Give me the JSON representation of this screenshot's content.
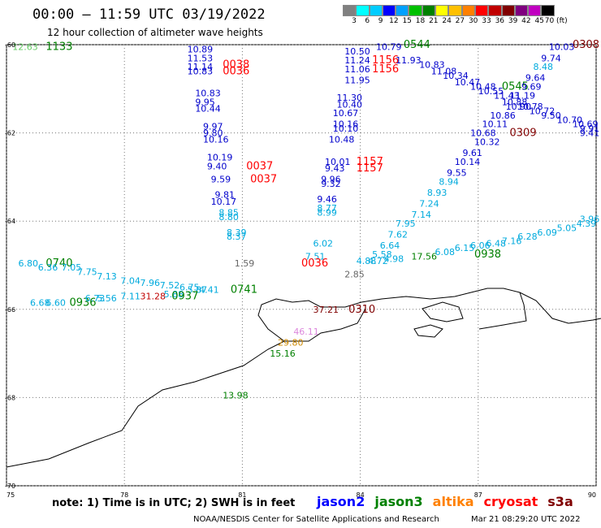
{
  "title": "00:00 – 11:59 UTC 03/19/2022",
  "subtitle": "12 hour collection of altimeter wave heights",
  "scale": {
    "labels": [
      "3",
      "6",
      "9",
      "12",
      "15",
      "18",
      "21",
      "24",
      "27",
      "30",
      "33",
      "36",
      "39",
      "42",
      "45",
      "70 (ft)"
    ],
    "colors": [
      "#808080",
      "#00ffff",
      "#00ccff",
      "#0000ff",
      "#00a0ff",
      "#00c000",
      "#008000",
      "#ffff00",
      "#ffc000",
      "#ff8000",
      "#ff0000",
      "#c00000",
      "#800000",
      "#800080",
      "#c000c0",
      "#000000"
    ]
  },
  "axes": {
    "lon": [
      75,
      78,
      81,
      84,
      87,
      90
    ],
    "lat": [
      -60,
      -62,
      -64,
      -66,
      -68,
      -70
    ]
  },
  "note": "note: 1) Time is in UTC; 2) SWH is in feet",
  "legend": [
    {
      "name": "jason2",
      "color": "#0000ff"
    },
    {
      "name": "jason3",
      "color": "#008000"
    },
    {
      "name": "altika",
      "color": "#ff8000"
    },
    {
      "name": "cryosat",
      "color": "#ff0000"
    },
    {
      "name": "s3a",
      "color": "#800000"
    }
  ],
  "credit": "NOAA/NESDIS Center for Satellite Applications and Research",
  "timestamp": "Mar 21 08:29:20 UTC 2022",
  "map_labels": [
    {
      "t": "12.63",
      "lon": 75.15,
      "lat": -60.05,
      "c": "#66cc66",
      "s": 11
    },
    {
      "t": "1133",
      "lon": 76.0,
      "lat": -60.05,
      "c": "#008000",
      "s": 13
    },
    {
      "t": "10.89",
      "lon": 79.6,
      "lat": -60.1,
      "c": "#0000cc",
      "s": 11
    },
    {
      "t": "11.53",
      "lon": 79.6,
      "lat": -60.3,
      "c": "#0000cc",
      "s": 11
    },
    {
      "t": "11.14",
      "lon": 79.6,
      "lat": -60.5,
      "c": "#0000cc",
      "s": 11
    },
    {
      "t": "10.83",
      "lon": 79.6,
      "lat": -60.6,
      "c": "#0000cc",
      "s": 11
    },
    {
      "t": "0038",
      "lon": 80.5,
      "lat": -60.45,
      "c": "#ff0000",
      "s": 13
    },
    {
      "t": "0036",
      "lon": 80.5,
      "lat": -60.6,
      "c": "#ff0000",
      "s": 13
    },
    {
      "t": "10.83",
      "lon": 79.8,
      "lat": -61.1,
      "c": "#0000cc",
      "s": 11
    },
    {
      "t": "9.95",
      "lon": 79.8,
      "lat": -61.3,
      "c": "#0000cc",
      "s": 11
    },
    {
      "t": "10.44",
      "lon": 79.8,
      "lat": -61.45,
      "c": "#0000cc",
      "s": 11
    },
    {
      "t": "9.97",
      "lon": 80.0,
      "lat": -61.85,
      "c": "#0000cc",
      "s": 11
    },
    {
      "t": "9.80",
      "lon": 80.0,
      "lat": -62.0,
      "c": "#0000cc",
      "s": 11
    },
    {
      "t": "10.16",
      "lon": 80.0,
      "lat": -62.15,
      "c": "#0000cc",
      "s": 11
    },
    {
      "t": "10.19",
      "lon": 80.1,
      "lat": -62.55,
      "c": "#0000cc",
      "s": 11
    },
    {
      "t": "9.40",
      "lon": 80.1,
      "lat": -62.75,
      "c": "#0000cc",
      "s": 11
    },
    {
      "t": "0037",
      "lon": 81.1,
      "lat": -62.75,
      "c": "#ff0000",
      "s": 13
    },
    {
      "t": "0037",
      "lon": 81.2,
      "lat": -63.05,
      "c": "#ff0000",
      "s": 13
    },
    {
      "t": "9.59",
      "lon": 80.2,
      "lat": -63.05,
      "c": "#0000cc",
      "s": 11
    },
    {
      "t": "9.81",
      "lon": 80.3,
      "lat": -63.4,
      "c": "#0000cc",
      "s": 11
    },
    {
      "t": "10.17",
      "lon": 80.2,
      "lat": -63.55,
      "c": "#0000cc",
      "s": 11
    },
    {
      "t": "8.85",
      "lon": 80.4,
      "lat": -63.8,
      "c": "#00aadd",
      "s": 11
    },
    {
      "t": "8.80",
      "lon": 80.4,
      "lat": -63.9,
      "c": "#00aadd",
      "s": 11
    },
    {
      "t": "8.39",
      "lon": 80.6,
      "lat": -64.25,
      "c": "#00aadd",
      "s": 11
    },
    {
      "t": "8.37",
      "lon": 80.6,
      "lat": -64.35,
      "c": "#00aadd",
      "s": 11
    },
    {
      "t": "1.59",
      "lon": 80.8,
      "lat": -64.95,
      "c": "#666666",
      "s": 11
    },
    {
      "t": "6.02",
      "lon": 82.8,
      "lat": -64.5,
      "c": "#00aadd",
      "s": 11
    },
    {
      "t": "7.51",
      "lon": 82.6,
      "lat": -64.8,
      "c": "#00aadd",
      "s": 11
    },
    {
      "t": "0036",
      "lon": 82.5,
      "lat": -64.95,
      "c": "#ff0000",
      "s": 13
    },
    {
      "t": "10.01",
      "lon": 83.1,
      "lat": -62.65,
      "c": "#0000cc",
      "s": 11
    },
    {
      "t": "9.43",
      "lon": 83.1,
      "lat": -62.8,
      "c": "#0000cc",
      "s": 11
    },
    {
      "t": "9.96",
      "lon": 83.0,
      "lat": -63.05,
      "c": "#0000cc",
      "s": 11
    },
    {
      "t": "9.32",
      "lon": 83.0,
      "lat": -63.15,
      "c": "#0000cc",
      "s": 11
    },
    {
      "t": "9.46",
      "lon": 82.9,
      "lat": -63.5,
      "c": "#0000cc",
      "s": 11
    },
    {
      "t": "8.77",
      "lon": 82.9,
      "lat": -63.7,
      "c": "#00aadd",
      "s": 11
    },
    {
      "t": "8.99",
      "lon": 82.9,
      "lat": -63.8,
      "c": "#00aadd",
      "s": 11
    },
    {
      "t": "1157",
      "lon": 83.9,
      "lat": -62.65,
      "c": "#ff0000",
      "s": 13
    },
    {
      "t": "1157",
      "lon": 83.9,
      "lat": -62.8,
      "c": "#ff0000",
      "s": 13
    },
    {
      "t": "11.30",
      "lon": 83.4,
      "lat": -61.2,
      "c": "#0000cc",
      "s": 11
    },
    {
      "t": "10.40",
      "lon": 83.4,
      "lat": -61.35,
      "c": "#0000cc",
      "s": 11
    },
    {
      "t": "10.67",
      "lon": 83.3,
      "lat": -61.55,
      "c": "#0000cc",
      "s": 11
    },
    {
      "t": "10.16",
      "lon": 83.3,
      "lat": -61.8,
      "c": "#0000cc",
      "s": 11
    },
    {
      "t": "10.10",
      "lon": 83.3,
      "lat": -61.9,
      "c": "#0000cc",
      "s": 11
    },
    {
      "t": "10.48",
      "lon": 83.2,
      "lat": -62.15,
      "c": "#0000cc",
      "s": 11
    },
    {
      "t": "10.50",
      "lon": 83.6,
      "lat": -60.15,
      "c": "#0000cc",
      "s": 11
    },
    {
      "t": "11.24",
      "lon": 83.6,
      "lat": -60.35,
      "c": "#0000cc",
      "s": 11
    },
    {
      "t": "11.06",
      "lon": 83.6,
      "lat": -60.55,
      "c": "#0000cc",
      "s": 11
    },
    {
      "t": "11.95",
      "lon": 83.6,
      "lat": -60.8,
      "c": "#0000cc",
      "s": 11
    },
    {
      "t": "10.79",
      "lon": 84.4,
      "lat": -60.05,
      "c": "#0000cc",
      "s": 11
    },
    {
      "t": "0544",
      "lon": 85.1,
      "lat": -60.0,
      "c": "#008000",
      "s": 13
    },
    {
      "t": "1156",
      "lon": 84.3,
      "lat": -60.35,
      "c": "#ff0000",
      "s": 13
    },
    {
      "t": "1156",
      "lon": 84.3,
      "lat": -60.55,
      "c": "#ff0000",
      "s": 13
    },
    {
      "t": "11.93",
      "lon": 84.9,
      "lat": -60.35,
      "c": "#0000cc",
      "s": 11
    },
    {
      "t": "10.83",
      "lon": 85.5,
      "lat": -60.45,
      "c": "#0000cc",
      "s": 11
    },
    {
      "t": "11.08",
      "lon": 85.8,
      "lat": -60.6,
      "c": "#0000cc",
      "s": 11
    },
    {
      "t": "10.34",
      "lon": 86.1,
      "lat": -60.7,
      "c": "#0000cc",
      "s": 11
    },
    {
      "t": "10.47",
      "lon": 86.4,
      "lat": -60.85,
      "c": "#0000cc",
      "s": 11
    },
    {
      "t": "10.48",
      "lon": 86.8,
      "lat": -60.95,
      "c": "#0000cc",
      "s": 11
    },
    {
      "t": "10.55",
      "lon": 87.0,
      "lat": -61.05,
      "c": "#0000cc",
      "s": 11
    },
    {
      "t": "0545",
      "lon": 87.6,
      "lat": -60.95,
      "c": "#008000",
      "s": 13
    },
    {
      "t": "11.43",
      "lon": 87.4,
      "lat": -61.15,
      "c": "#0000cc",
      "s": 11
    },
    {
      "t": "11.19",
      "lon": 87.8,
      "lat": -61.15,
      "c": "#0000cc",
      "s": 11
    },
    {
      "t": "10.88",
      "lon": 87.6,
      "lat": -61.3,
      "c": "#0000cc",
      "s": 11
    },
    {
      "t": "10.90",
      "lon": 87.7,
      "lat": -61.4,
      "c": "#0000cc",
      "s": 11
    },
    {
      "t": "10.78",
      "lon": 88.0,
      "lat": -61.4,
      "c": "#0000cc",
      "s": 11
    },
    {
      "t": "10.86",
      "lon": 87.3,
      "lat": -61.6,
      "c": "#0000cc",
      "s": 11
    },
    {
      "t": "10.72",
      "lon": 88.3,
      "lat": -61.5,
      "c": "#0000cc",
      "s": 11
    },
    {
      "t": "9.50",
      "lon": 88.6,
      "lat": -61.6,
      "c": "#0000cc",
      "s": 11
    },
    {
      "t": "10.70",
      "lon": 89.0,
      "lat": -61.7,
      "c": "#0000cc",
      "s": 11
    },
    {
      "t": "10.69",
      "lon": 89.4,
      "lat": -61.8,
      "c": "#0000cc",
      "s": 11
    },
    {
      "t": "9.91",
      "lon": 89.7,
      "lat": -61.9,
      "c": "#0000cc",
      "s": 11
    },
    {
      "t": "9.41",
      "lon": 90.0,
      "lat": -62.0,
      "c": "#0000cc",
      "s": 11
    },
    {
      "t": "10.11",
      "lon": 87.1,
      "lat": -61.8,
      "c": "#0000cc",
      "s": 11
    },
    {
      "t": "10.68",
      "lon": 86.8,
      "lat": -62.0,
      "c": "#0000cc",
      "s": 11
    },
    {
      "t": "0309",
      "lon": 87.8,
      "lat": -62.0,
      "c": "#800000",
      "s": 13
    },
    {
      "t": "10.32",
      "lon": 86.9,
      "lat": -62.2,
      "c": "#0000cc",
      "s": 11
    },
    {
      "t": "9.61",
      "lon": 86.6,
      "lat": -62.45,
      "c": "#0000cc",
      "s": 11
    },
    {
      "t": "10.14",
      "lon": 86.4,
      "lat": -62.65,
      "c": "#0000cc",
      "s": 11
    },
    {
      "t": "9.55",
      "lon": 86.2,
      "lat": -62.9,
      "c": "#0000cc",
      "s": 11
    },
    {
      "t": "8.94",
      "lon": 86.0,
      "lat": -63.1,
      "c": "#00aadd",
      "s": 11
    },
    {
      "t": "8.93",
      "lon": 85.7,
      "lat": -63.35,
      "c": "#00aadd",
      "s": 11
    },
    {
      "t": "7.24",
      "lon": 85.5,
      "lat": -63.6,
      "c": "#00aadd",
      "s": 11
    },
    {
      "t": "7.14",
      "lon": 85.3,
      "lat": -63.85,
      "c": "#00aadd",
      "s": 11
    },
    {
      "t": "7.95",
      "lon": 84.9,
      "lat": -64.05,
      "c": "#00aadd",
      "s": 11
    },
    {
      "t": "7.62",
      "lon": 84.7,
      "lat": -64.3,
      "c": "#00aadd",
      "s": 11
    },
    {
      "t": "6.64",
      "lon": 84.5,
      "lat": -64.55,
      "c": "#00aadd",
      "s": 11
    },
    {
      "t": "5.58",
      "lon": 84.3,
      "lat": -64.75,
      "c": "#00aadd",
      "s": 11
    },
    {
      "t": "4.88",
      "lon": 83.9,
      "lat": -64.9,
      "c": "#00aadd",
      "s": 11
    },
    {
      "t": "4.72",
      "lon": 84.2,
      "lat": -64.9,
      "c": "#00aadd",
      "s": 11
    },
    {
      "t": "4.98",
      "lon": 84.6,
      "lat": -64.85,
      "c": "#00aadd",
      "s": 11
    },
    {
      "t": "17.56",
      "lon": 85.3,
      "lat": -64.8,
      "c": "#008000",
      "s": 11
    },
    {
      "t": "6.08",
      "lon": 85.9,
      "lat": -64.7,
      "c": "#00aadd",
      "s": 11
    },
    {
      "t": "6.15",
      "lon": 86.4,
      "lat": -64.6,
      "c": "#00aadd",
      "s": 11
    },
    {
      "t": "0938",
      "lon": 86.9,
      "lat": -64.75,
      "c": "#008000",
      "s": 13
    },
    {
      "t": "6.06",
      "lon": 86.8,
      "lat": -64.55,
      "c": "#00aadd",
      "s": 11
    },
    {
      "t": "6.48",
      "lon": 87.2,
      "lat": -64.5,
      "c": "#00aadd",
      "s": 11
    },
    {
      "t": "7.16",
      "lon": 87.6,
      "lat": -64.45,
      "c": "#00aadd",
      "s": 11
    },
    {
      "t": "6.28",
      "lon": 88.0,
      "lat": -64.35,
      "c": "#00aadd",
      "s": 11
    },
    {
      "t": "6.09",
      "lon": 88.5,
      "lat": -64.25,
      "c": "#00aadd",
      "s": 11
    },
    {
      "t": "5.05",
      "lon": 89.0,
      "lat": -64.15,
      "c": "#00aadd",
      "s": 11
    },
    {
      "t": "4.39",
      "lon": 89.5,
      "lat": -64.05,
      "c": "#00aadd",
      "s": 11
    },
    {
      "t": "3.96",
      "lon": 89.9,
      "lat": -63.95,
      "c": "#00aadd",
      "s": 11
    },
    {
      "t": "2.85",
      "lon": 83.6,
      "lat": -65.2,
      "c": "#666666",
      "s": 11
    },
    {
      "t": "10.03",
      "lon": 88.8,
      "lat": -60.05,
      "c": "#0000cc",
      "s": 11
    },
    {
      "t": "0308",
      "lon": 89.4,
      "lat": -60.0,
      "c": "#800000",
      "s": 13
    },
    {
      "t": "9.74",
      "lon": 88.6,
      "lat": -60.3,
      "c": "#0000cc",
      "s": 11
    },
    {
      "t": "8.48",
      "lon": 88.4,
      "lat": -60.5,
      "c": "#00aadd",
      "s": 11
    },
    {
      "t": "9.64",
      "lon": 88.2,
      "lat": -60.75,
      "c": "#0000cc",
      "s": 11
    },
    {
      "t": "9.69",
      "lon": 88.1,
      "lat": -60.95,
      "c": "#0000cc",
      "s": 11
    },
    {
      "t": "6.80",
      "lon": 75.3,
      "lat": -64.95,
      "c": "#00aadd",
      "s": 11
    },
    {
      "t": "0740",
      "lon": 76.0,
      "lat": -64.95,
      "c": "#008000",
      "s": 13
    },
    {
      "t": "6.36",
      "lon": 75.8,
      "lat": -65.05,
      "c": "#00aadd",
      "s": 11
    },
    {
      "t": "7.05",
      "lon": 76.4,
      "lat": -65.05,
      "c": "#00aadd",
      "s": 11
    },
    {
      "t": "7.75",
      "lon": 76.8,
      "lat": -65.15,
      "c": "#00aadd",
      "s": 11
    },
    {
      "t": "7.13",
      "lon": 77.3,
      "lat": -65.25,
      "c": "#00aadd",
      "s": 11
    },
    {
      "t": "7.04",
      "lon": 77.9,
      "lat": -65.35,
      "c": "#00aadd",
      "s": 11
    },
    {
      "t": "7.96",
      "lon": 78.4,
      "lat": -65.4,
      "c": "#00aadd",
      "s": 11
    },
    {
      "t": "7.52",
      "lon": 78.9,
      "lat": -65.45,
      "c": "#00aadd",
      "s": 11
    },
    {
      "t": "6.75",
      "lon": 79.4,
      "lat": -65.5,
      "c": "#00aadd",
      "s": 11
    },
    {
      "t": "5.87",
      "lon": 79.6,
      "lat": -65.55,
      "c": "#00aadd",
      "s": 11
    },
    {
      "t": "4.41",
      "lon": 79.9,
      "lat": -65.55,
      "c": "#00aadd",
      "s": 11
    },
    {
      "t": "0741",
      "lon": 80.7,
      "lat": -65.55,
      "c": "#008000",
      "s": 13
    },
    {
      "t": "6.68",
      "lon": 75.6,
      "lat": -65.85,
      "c": "#00aadd",
      "s": 11
    },
    {
      "t": "6.60",
      "lon": 76.0,
      "lat": -65.85,
      "c": "#00aadd",
      "s": 11
    },
    {
      "t": "0936",
      "lon": 76.6,
      "lat": -65.85,
      "c": "#008000",
      "s": 13
    },
    {
      "t": "6.73",
      "lon": 77.0,
      "lat": -65.75,
      "c": "#00aadd",
      "s": 11
    },
    {
      "t": "5.56",
      "lon": 77.3,
      "lat": -65.75,
      "c": "#00aadd",
      "s": 11
    },
    {
      "t": "7.11",
      "lon": 77.9,
      "lat": -65.7,
      "c": "#00aadd",
      "s": 11
    },
    {
      "t": "31.28",
      "lon": 78.4,
      "lat": -65.7,
      "c": "#c00000",
      "s": 11
    },
    {
      "t": "5.88",
      "lon": 79.0,
      "lat": -65.65,
      "c": "#00aadd",
      "s": 11
    },
    {
      "t": "0937",
      "lon": 79.2,
      "lat": -65.7,
      "c": "#008000",
      "s": 13
    },
    {
      "t": "37.21",
      "lon": 82.8,
      "lat": -66.0,
      "c": "#800000",
      "s": 11
    },
    {
      "t": "0310",
      "lon": 83.7,
      "lat": -66.0,
      "c": "#800000",
      "s": 13
    },
    {
      "t": "46.11",
      "lon": 82.3,
      "lat": -66.5,
      "c": "#dd88dd",
      "s": 11
    },
    {
      "t": "29.80",
      "lon": 81.9,
      "lat": -66.75,
      "c": "#cc8800",
      "s": 11
    },
    {
      "t": "15.16",
      "lon": 81.7,
      "lat": -67.0,
      "c": "#008000",
      "s": 11
    },
    {
      "t": "13.98",
      "lon": 80.5,
      "lat": -67.95,
      "c": "#008000",
      "s": 11
    }
  ]
}
